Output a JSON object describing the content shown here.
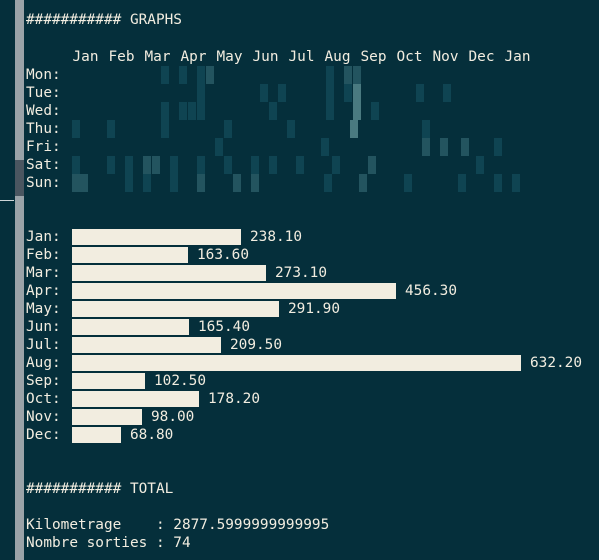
{
  "graphs_header": "########### GRAPHS",
  "heatmap": {
    "months": [
      "Jan",
      "Feb",
      "Mar",
      "Apr",
      "May",
      "Jun",
      "Jul",
      "Aug",
      "Sep",
      "Oct",
      "Nov",
      "Dec",
      "Jan"
    ],
    "days": [
      "Mon:",
      "Tue:",
      "Wed:",
      "Thu:",
      "Fri:",
      "Sat:",
      "Sun:"
    ]
  },
  "bar_chart": {
    "rows": [
      {
        "label": "Jan:",
        "value": 238.1,
        "value_text": "238.10"
      },
      {
        "label": "Feb:",
        "value": 163.6,
        "value_text": "163.60"
      },
      {
        "label": "Mar:",
        "value": 273.1,
        "value_text": "273.10"
      },
      {
        "label": "Apr:",
        "value": 456.3,
        "value_text": "456.30"
      },
      {
        "label": "May:",
        "value": 291.9,
        "value_text": "291.90"
      },
      {
        "label": "Jun:",
        "value": 165.4,
        "value_text": "165.40"
      },
      {
        "label": "Jul:",
        "value": 209.5,
        "value_text": "209.50"
      },
      {
        "label": "Aug:",
        "value": 632.2,
        "value_text": "632.20"
      },
      {
        "label": "Sep:",
        "value": 102.5,
        "value_text": "102.50"
      },
      {
        "label": "Oct:",
        "value": 178.2,
        "value_text": "178.20"
      },
      {
        "label": "Nov:",
        "value": 98.0,
        "value_text": "98.00"
      },
      {
        "label": "Dec:",
        "value": 68.8,
        "value_text": "68.80"
      }
    ]
  },
  "total_header": "########### TOTAL",
  "totals": {
    "kilometrage_line": "Kilometrage    : 2877.5999999999995",
    "sorties_line": "Nombre sorties : 74"
  },
  "colors": {
    "background": "#052f3b",
    "text": "#f2ede0",
    "heat_low": "#0f4452",
    "heat_mid": "#23545f",
    "heat_high": "#4a7a80"
  }
}
